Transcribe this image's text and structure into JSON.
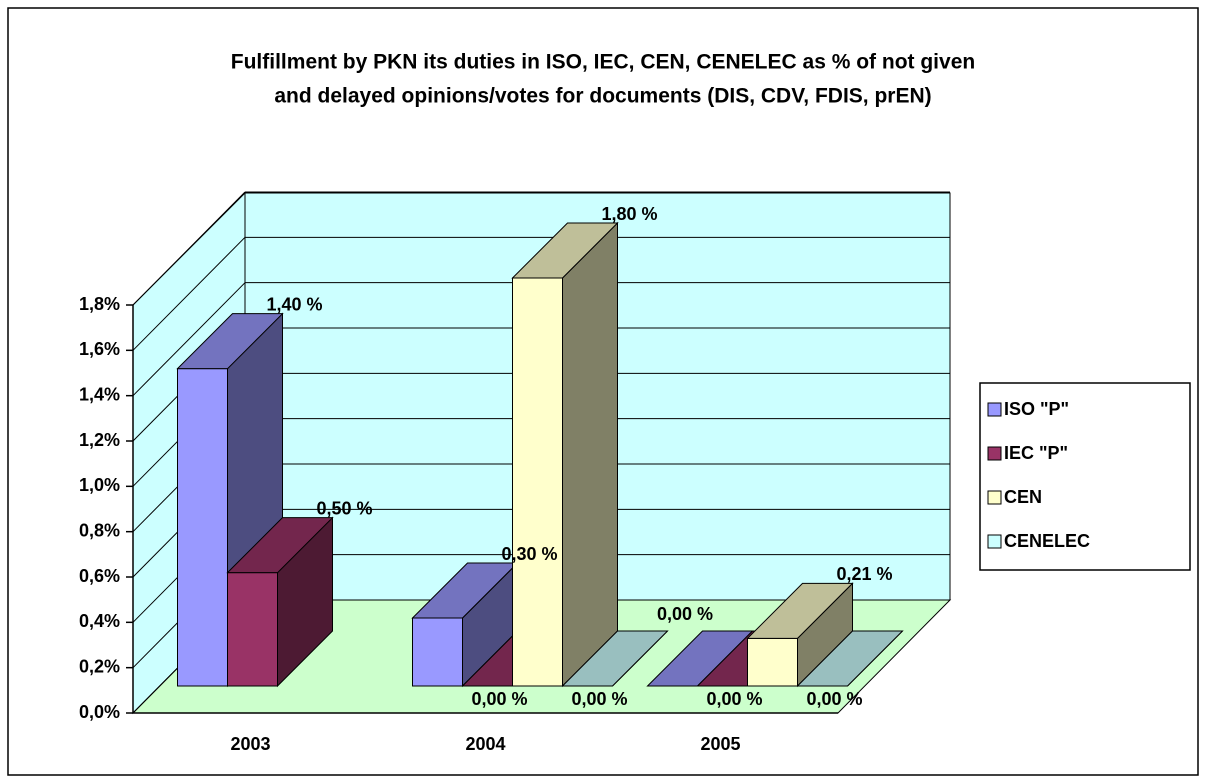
{
  "chart_data": {
    "type": "bar3d",
    "title": [
      "Fulfillment by PKN its duties in ISO, IEC, CEN, CENELEC as % of not given",
      "and delayed opinions/votes for documents (DIS, CDV, FDIS, prEN)"
    ],
    "categories": [
      "2003",
      "2004",
      "2005"
    ],
    "series": [
      {
        "name": "ISO \"P\"",
        "color": "#9999ff",
        "values": [
          1.4,
          0.3,
          0.0
        ],
        "value_labels": [
          "1,40 %",
          "0,30 %",
          "0,00 %"
        ]
      },
      {
        "name": "IEC \"P\"",
        "color": "#993366",
        "values": [
          0.5,
          0.0,
          0.0
        ],
        "value_labels": [
          "0,50 %",
          "0,00 %",
          "0,00 %"
        ]
      },
      {
        "name": "CEN",
        "color": "#ffffcc",
        "values": [
          null,
          1.8,
          0.21
        ],
        "value_labels": [
          null,
          "1,80 %",
          "0,21 %"
        ]
      },
      {
        "name": "CENELEC",
        "color": "#ccffff",
        "values": [
          null,
          0.0,
          0.0
        ],
        "value_labels": [
          null,
          "0,00 %",
          "0,00 %"
        ]
      }
    ],
    "ylim": [
      0,
      1.8
    ],
    "yticks": [
      {
        "value": 0,
        "label": "0,0%"
      },
      {
        "value": 0.2,
        "label": "0,2%"
      },
      {
        "value": 0.4,
        "label": "0,4%"
      },
      {
        "value": 0.6,
        "label": "0,6%"
      },
      {
        "value": 0.8,
        "label": "0,8%"
      },
      {
        "value": 1.0,
        "label": "1,0%"
      },
      {
        "value": 1.2,
        "label": "1,2%"
      },
      {
        "value": 1.4,
        "label": "1,4%"
      },
      {
        "value": 1.6,
        "label": "1,6%"
      },
      {
        "value": 1.8,
        "label": "1,8%"
      }
    ],
    "grid": true,
    "legend": "right"
  }
}
